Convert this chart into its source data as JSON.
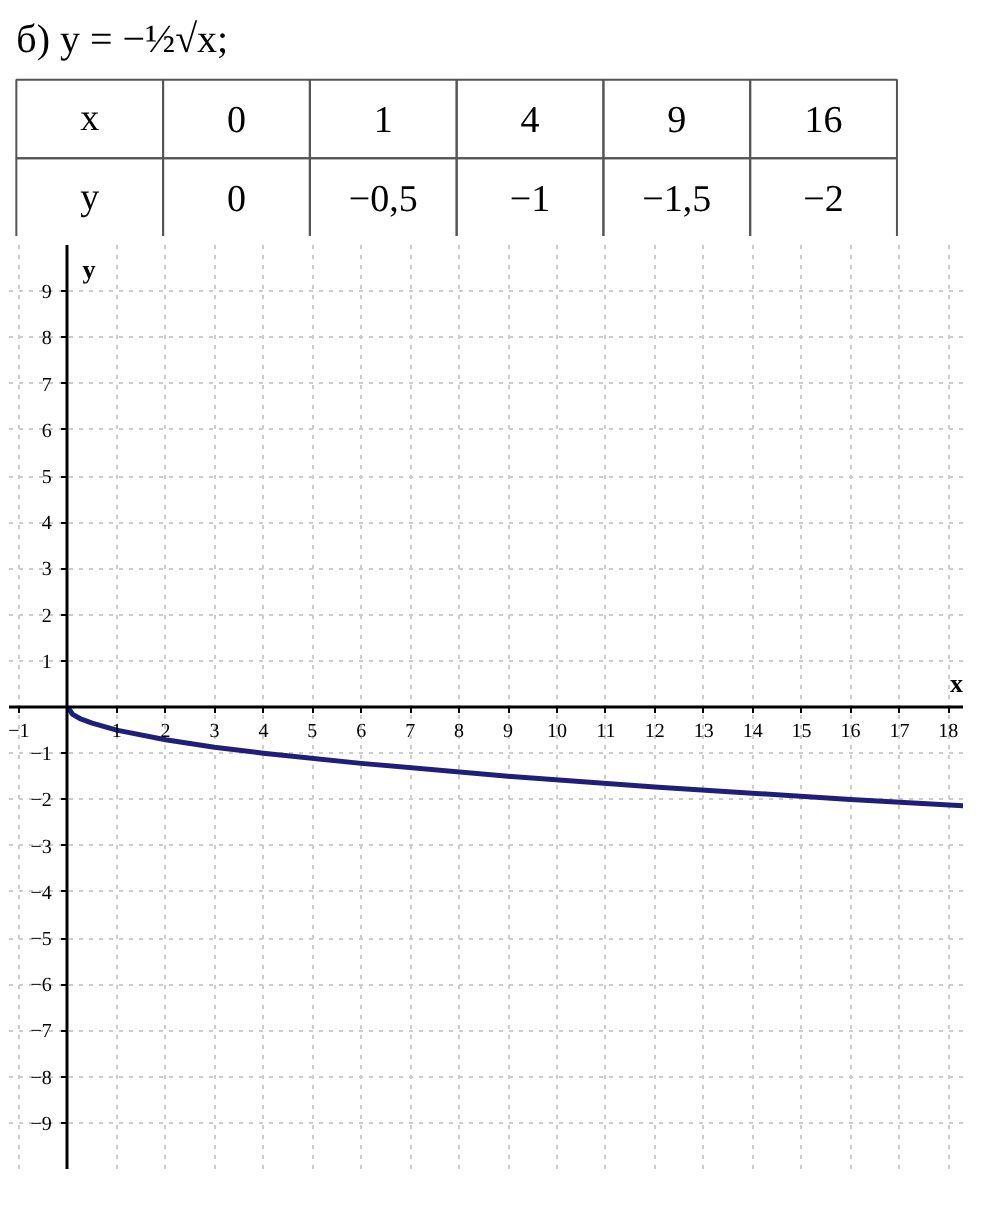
{
  "chart_data": {
    "type": "line",
    "title": "б) y = −½√x;",
    "xlabel": "x",
    "ylabel": "y",
    "annotations": [
      "x",
      "0",
      "1",
      "4",
      "9",
      "16",
      "y",
      "0",
      "−0,5",
      "−1",
      "−1,5",
      "−2"
    ],
    "x": [
      0,
      0.1,
      0.25,
      0.5,
      1,
      2,
      3,
      4,
      6,
      9,
      12,
      16,
      18.3
    ],
    "series": [
      {
        "color": "#1f1f7a",
        "values": [
          0,
          -0.16,
          -0.25,
          -0.35,
          -0.5,
          -0.71,
          -0.87,
          -1,
          -1.22,
          -1.5,
          -1.73,
          -2,
          -2.14
        ]
      }
    ],
    "xlim": [
      -1.2,
      18.3
    ],
    "ylim": [
      -10,
      10
    ],
    "xticks": [
      -1,
      1,
      2,
      3,
      4,
      5,
      6,
      7,
      8,
      9,
      10,
      11,
      12,
      13,
      14,
      15,
      16,
      17,
      18
    ],
    "yticks": [
      -9,
      -8,
      -7,
      -6,
      -5,
      -4,
      -3,
      -2,
      -1,
      1,
      2,
      3,
      4,
      5,
      6,
      7,
      8,
      9
    ],
    "grid": true,
    "marker": "none",
    "line_style": "solid"
  }
}
